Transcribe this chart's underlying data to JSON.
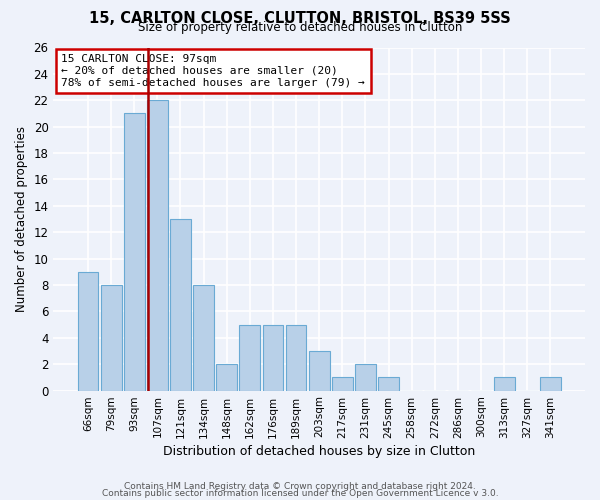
{
  "title": "15, CARLTON CLOSE, CLUTTON, BRISTOL, BS39 5SS",
  "subtitle": "Size of property relative to detached houses in Clutton",
  "xlabel": "Distribution of detached houses by size in Clutton",
  "ylabel": "Number of detached properties",
  "bar_labels": [
    "66sqm",
    "79sqm",
    "93sqm",
    "107sqm",
    "121sqm",
    "134sqm",
    "148sqm",
    "162sqm",
    "176sqm",
    "189sqm",
    "203sqm",
    "217sqm",
    "231sqm",
    "245sqm",
    "258sqm",
    "272sqm",
    "286sqm",
    "300sqm",
    "313sqm",
    "327sqm",
    "341sqm"
  ],
  "bar_values": [
    9,
    8,
    21,
    22,
    13,
    8,
    2,
    5,
    5,
    5,
    3,
    1,
    2,
    1,
    0,
    0,
    0,
    0,
    1,
    0,
    1
  ],
  "bar_color": "#b8d0e8",
  "bar_edge_color": "#6aaad4",
  "vline_x_index": 2.575,
  "vline_color": "#aa0000",
  "ylim": [
    0,
    26
  ],
  "yticks": [
    0,
    2,
    4,
    6,
    8,
    10,
    12,
    14,
    16,
    18,
    20,
    22,
    24,
    26
  ],
  "annotation_title": "15 CARLTON CLOSE: 97sqm",
  "annotation_line2": "← 20% of detached houses are smaller (20)",
  "annotation_line3": "78% of semi-detached houses are larger (79) →",
  "annotation_box_color": "#ffffff",
  "annotation_box_edge": "#cc0000",
  "footer1": "Contains HM Land Registry data © Crown copyright and database right 2024.",
  "footer2": "Contains public sector information licensed under the Open Government Licence v 3.0.",
  "bg_color": "#eef2fa",
  "plot_bg_color": "#eef2fa",
  "grid_color": "#ffffff"
}
